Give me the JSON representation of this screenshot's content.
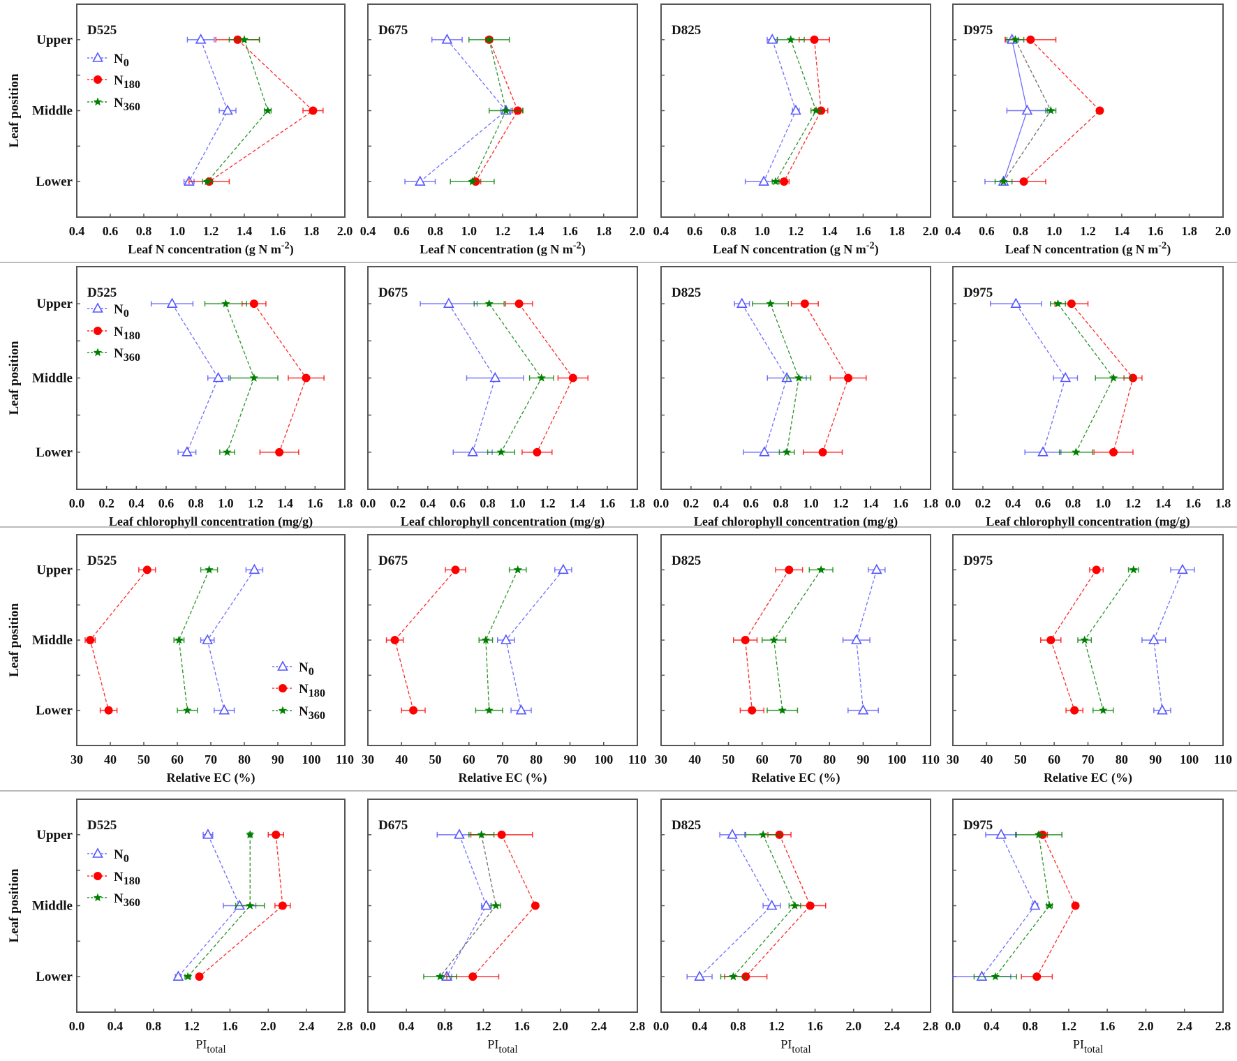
{
  "figure": {
    "ylabel": "Leaf position",
    "categories": [
      "Upper",
      "Middle",
      "Lower"
    ],
    "series_styles": {
      "N0": {
        "color": "#5555ff",
        "marker": "open-triangle"
      },
      "N180": {
        "color": "#ff0000",
        "marker": "filled-circle"
      },
      "N360": {
        "color": "#008000",
        "marker": "star"
      }
    },
    "row_separator_color": "#bbbbbb"
  },
  "chart_data": [
    {
      "type": "line",
      "title": "D525",
      "xlabel": "Leaf N concentration (g N m-2)",
      "xlim": [
        0.4,
        2.0
      ],
      "xticks": [
        "0.4",
        "0.6",
        "0.8",
        "1.0",
        "1.2",
        "1.4",
        "1.6",
        "1.8",
        "2.0"
      ],
      "categories": [
        "Upper",
        "Middle",
        "Lower"
      ],
      "legend": "top-left",
      "series": [
        {
          "name": "N0",
          "values": [
            1.14,
            1.3,
            1.07
          ],
          "errors": [
            0.08,
            0.05,
            0.03
          ]
        },
        {
          "name": "N180",
          "values": [
            1.36,
            1.81,
            1.19
          ],
          "errors": [
            0.13,
            0.06,
            0.12
          ]
        },
        {
          "name": "N360",
          "values": [
            1.4,
            1.54,
            1.18
          ],
          "errors": [
            0.09,
            0.02,
            0.03
          ]
        }
      ]
    },
    {
      "type": "line",
      "title": "D675",
      "xlabel": "Leaf N concentration (g N m-2)",
      "xlim": [
        0.4,
        2.0
      ],
      "xticks": [
        "0.4",
        "0.6",
        "0.8",
        "1.0",
        "1.2",
        "1.4",
        "1.6",
        "1.8",
        "2.0"
      ],
      "categories": [
        "Upper",
        "Middle",
        "Lower"
      ],
      "series": [
        {
          "name": "N0",
          "values": [
            0.87,
            1.22,
            0.71
          ],
          "errors": [
            0.09,
            0.03,
            0.09
          ]
        },
        {
          "name": "N180",
          "values": [
            1.12,
            1.29,
            1.04
          ],
          "errors": [
            0.02,
            0.03,
            0.03
          ]
        },
        {
          "name": "N360",
          "values": [
            1.12,
            1.22,
            1.02
          ],
          "errors": [
            0.12,
            0.1,
            0.13
          ]
        }
      ]
    },
    {
      "type": "line",
      "title": "D825",
      "xlabel": "Leaf N concentration (g N m-2)",
      "xlim": [
        0.4,
        2.0
      ],
      "xticks": [
        "0.4",
        "0.6",
        "0.8",
        "1.0",
        "1.2",
        "1.4",
        "1.6",
        "1.8",
        "2.0"
      ],
      "categories": [
        "Upper",
        "Middle",
        "Lower"
      ],
      "series": [
        {
          "name": "N0",
          "values": [
            1.06,
            1.2,
            1.01
          ],
          "errors": [
            0.03,
            0.02,
            0.11
          ]
        },
        {
          "name": "N180",
          "values": [
            1.31,
            1.35,
            1.13
          ],
          "errors": [
            0.09,
            0.04,
            0.03
          ]
        },
        {
          "name": "N360",
          "values": [
            1.17,
            1.32,
            1.08
          ],
          "errors": [
            0.08,
            0.03,
            0.02
          ]
        }
      ]
    },
    {
      "type": "line",
      "title": "D975",
      "xlabel": "Leaf N concentration (g N m-2)",
      "xlim": [
        0.4,
        2.0
      ],
      "xticks": [
        "0.4",
        "0.6",
        "0.8",
        "1.0",
        "1.2",
        "1.4",
        "1.6",
        "1.8",
        "2.0"
      ],
      "categories": [
        "Upper",
        "Middle",
        "Lower"
      ],
      "series": [
        {
          "name": "N0",
          "values": [
            0.75,
            0.84,
            0.7
          ],
          "errors": [
            0.04,
            0.12,
            0.11
          ],
          "line": "solid"
        },
        {
          "name": "N180",
          "values": [
            0.86,
            1.27,
            0.82
          ],
          "errors": [
            0.15,
            0.01,
            0.13
          ]
        },
        {
          "name": "N360",
          "values": [
            0.77,
            0.98,
            0.7
          ],
          "errors": [
            0.05,
            0.03,
            0.05
          ],
          "line_color": "#555555"
        }
      ]
    },
    {
      "type": "line",
      "title": "D525",
      "xlabel": "Leaf chlorophyll concentration (mg/g)",
      "xlim": [
        0.0,
        1.8
      ],
      "xticks": [
        "0.0",
        "0.2",
        "0.4",
        "0.6",
        "0.8",
        "1.0",
        "1.2",
        "1.4",
        "1.6",
        "1.8"
      ],
      "categories": [
        "Upper",
        "Middle",
        "Lower"
      ],
      "legend": "top-left",
      "series": [
        {
          "name": "N0",
          "values": [
            0.64,
            0.95,
            0.74
          ],
          "errors": [
            0.14,
            0.07,
            0.06
          ]
        },
        {
          "name": "N180",
          "values": [
            1.19,
            1.54,
            1.36
          ],
          "errors": [
            0.08,
            0.12,
            0.13
          ]
        },
        {
          "name": "N360",
          "values": [
            1.0,
            1.19,
            1.01
          ],
          "errors": [
            0.14,
            0.16,
            0.05
          ]
        }
      ]
    },
    {
      "type": "line",
      "title": "D675",
      "xlabel": "Leaf chlorophyll concentration (mg/g)",
      "xlim": [
        0.0,
        1.8
      ],
      "xticks": [
        "0.0",
        "0.2",
        "0.4",
        "0.6",
        "0.8",
        "1.0",
        "1.2",
        "1.4",
        "1.6",
        "1.8"
      ],
      "categories": [
        "Upper",
        "Middle",
        "Lower"
      ],
      "series": [
        {
          "name": "N0",
          "values": [
            0.54,
            0.85,
            0.7
          ],
          "errors": [
            0.19,
            0.19,
            0.13
          ]
        },
        {
          "name": "N180",
          "values": [
            1.01,
            1.37,
            1.13
          ],
          "errors": [
            0.09,
            0.1,
            0.1
          ]
        },
        {
          "name": "N360",
          "values": [
            0.81,
            1.16,
            0.89
          ],
          "errors": [
            0.1,
            0.08,
            0.09
          ]
        }
      ]
    },
    {
      "type": "line",
      "title": "D825",
      "xlabel": "Leaf chlorophyll concentration (mg/g)",
      "xlim": [
        0.0,
        1.8
      ],
      "xticks": [
        "0.0",
        "0.2",
        "0.4",
        "0.6",
        "0.8",
        "1.0",
        "1.2",
        "1.4",
        "1.6",
        "1.8"
      ],
      "categories": [
        "Upper",
        "Middle",
        "Lower"
      ],
      "series": [
        {
          "name": "N0",
          "values": [
            0.54,
            0.84,
            0.69
          ],
          "errors": [
            0.05,
            0.13,
            0.14
          ]
        },
        {
          "name": "N180",
          "values": [
            0.96,
            1.25,
            1.08
          ],
          "errors": [
            0.09,
            0.12,
            0.13
          ]
        },
        {
          "name": "N360",
          "values": [
            0.73,
            0.92,
            0.84
          ],
          "errors": [
            0.12,
            0.08,
            0.05
          ]
        }
      ]
    },
    {
      "type": "line",
      "title": "D975",
      "xlabel": "Leaf chlorophyll concentration (mg/g)",
      "xlim": [
        0.0,
        1.8
      ],
      "xticks": [
        "0.0",
        "0.2",
        "0.4",
        "0.6",
        "0.8",
        "1.0",
        "1.2",
        "1.4",
        "1.6",
        "1.8"
      ],
      "categories": [
        "Upper",
        "Middle",
        "Lower"
      ],
      "series": [
        {
          "name": "N0",
          "values": [
            0.42,
            0.75,
            0.6
          ],
          "errors": [
            0.17,
            0.08,
            0.12
          ]
        },
        {
          "name": "N180",
          "values": [
            0.79,
            1.2,
            1.07
          ],
          "errors": [
            0.11,
            0.06,
            0.13
          ]
        },
        {
          "name": "N360",
          "values": [
            0.7,
            1.07,
            0.82
          ],
          "errors": [
            0.05,
            0.12,
            0.11
          ]
        }
      ]
    },
    {
      "type": "line",
      "title": "D525",
      "xlabel": "Relative EC (%)",
      "xlim": [
        30,
        110
      ],
      "xticks": [
        "30",
        "40",
        "50",
        "60",
        "70",
        "80",
        "90",
        "100",
        "110"
      ],
      "categories": [
        "Upper",
        "Middle",
        "Lower"
      ],
      "legend": "bottom-right",
      "series": [
        {
          "name": "N0",
          "values": [
            83,
            69,
            74
          ],
          "errors": [
            2.5,
            2,
            3
          ]
        },
        {
          "name": "N180",
          "values": [
            51,
            34,
            39.5
          ],
          "errors": [
            2.5,
            1.5,
            2.5
          ]
        },
        {
          "name": "N360",
          "values": [
            69.5,
            60.5,
            63
          ],
          "errors": [
            2.5,
            1.5,
            3
          ]
        }
      ]
    },
    {
      "type": "line",
      "title": "D675",
      "xlabel": "Relative EC (%)",
      "xlim": [
        30,
        110
      ],
      "xticks": [
        "30",
        "40",
        "50",
        "60",
        "70",
        "80",
        "90",
        "100",
        "110"
      ],
      "categories": [
        "Upper",
        "Middle",
        "Lower"
      ],
      "series": [
        {
          "name": "N0",
          "values": [
            88,
            71,
            75.5
          ],
          "errors": [
            2.5,
            2.5,
            3
          ]
        },
        {
          "name": "N180",
          "values": [
            56,
            38,
            43.5
          ],
          "errors": [
            3,
            2.5,
            3.5
          ]
        },
        {
          "name": "N360",
          "values": [
            74.5,
            65,
            66
          ],
          "errors": [
            2.5,
            2,
            4
          ]
        }
      ]
    },
    {
      "type": "line",
      "title": "D825",
      "xlabel": "Relative EC (%)",
      "xlim": [
        30,
        110
      ],
      "xticks": [
        "30",
        "40",
        "50",
        "60",
        "70",
        "80",
        "90",
        "100",
        "110"
      ],
      "categories": [
        "Upper",
        "Middle",
        "Lower"
      ],
      "series": [
        {
          "name": "N0",
          "values": [
            94,
            88,
            90
          ],
          "errors": [
            2.5,
            4,
            4.5
          ]
        },
        {
          "name": "N180",
          "values": [
            68,
            55,
            57
          ],
          "errors": [
            4,
            3.5,
            3.5
          ]
        },
        {
          "name": "N360",
          "values": [
            77.5,
            63.5,
            66
          ],
          "errors": [
            3.5,
            3.5,
            4.5
          ]
        }
      ]
    },
    {
      "type": "line",
      "title": "D975",
      "xlabel": "Relative EC (%)",
      "xlim": [
        30,
        110
      ],
      "xticks": [
        "30",
        "40",
        "50",
        "60",
        "70",
        "80",
        "90",
        "100",
        "110"
      ],
      "categories": [
        "Upper",
        "Middle",
        "Lower"
      ],
      "series": [
        {
          "name": "N0",
          "values": [
            98,
            89.5,
            92
          ],
          "errors": [
            3.5,
            3.5,
            2.5
          ]
        },
        {
          "name": "N180",
          "values": [
            72.5,
            59,
            66
          ],
          "errors": [
            2,
            3,
            2.5
          ]
        },
        {
          "name": "N360",
          "values": [
            83.5,
            69,
            74.5
          ],
          "errors": [
            1.5,
            2,
            3
          ]
        }
      ]
    },
    {
      "type": "line",
      "title": "D525",
      "xlabel": "PItotal",
      "xlim": [
        0.0,
        2.8
      ],
      "xticks": [
        "0.0",
        "0.4",
        "0.8",
        "1.2",
        "1.6",
        "2.0",
        "2.4",
        "2.8"
      ],
      "categories": [
        "Upper",
        "Middle",
        "Lower"
      ],
      "legend": "top-left",
      "series": [
        {
          "name": "N0",
          "values": [
            1.37,
            1.7,
            1.06
          ],
          "errors": [
            0.05,
            0.17,
            0.03
          ]
        },
        {
          "name": "N180",
          "values": [
            2.08,
            2.15,
            1.28
          ],
          "errors": [
            0.08,
            0.08,
            0.03
          ]
        },
        {
          "name": "N360",
          "values": [
            1.81,
            1.81,
            1.16
          ],
          "errors": [
            0.02,
            0.15,
            0.03
          ]
        }
      ]
    },
    {
      "type": "line",
      "title": "D675",
      "xlabel": "PItotal",
      "xlim": [
        0.0,
        2.8
      ],
      "xticks": [
        "0.0",
        "0.4",
        "0.8",
        "1.2",
        "1.6",
        "2.0",
        "2.4",
        "2.8"
      ],
      "categories": [
        "Upper",
        "Middle",
        "Lower"
      ],
      "series": [
        {
          "name": "N0",
          "values": [
            0.95,
            1.23,
            0.82
          ],
          "errors": [
            0.23,
            0.05,
            0.05
          ]
        },
        {
          "name": "N180",
          "values": [
            1.39,
            1.74,
            1.09
          ],
          "errors": [
            0.32,
            0.02,
            0.27
          ]
        },
        {
          "name": "N360",
          "values": [
            1.18,
            1.33,
            0.75
          ],
          "errors": [
            0.13,
            0.05,
            0.17
          ],
          "line_color": "#555555"
        }
      ]
    },
    {
      "type": "line",
      "title": "D825",
      "xlabel": "PItotal",
      "xlim": [
        0.0,
        2.8
      ],
      "xticks": [
        "0.0",
        "0.4",
        "0.8",
        "1.2",
        "1.6",
        "2.0",
        "2.4",
        "2.8"
      ],
      "categories": [
        "Upper",
        "Middle",
        "Lower"
      ],
      "series": [
        {
          "name": "N0",
          "values": [
            0.74,
            1.15,
            0.4
          ],
          "errors": [
            0.13,
            0.09,
            0.13
          ]
        },
        {
          "name": "N180",
          "values": [
            1.23,
            1.55,
            0.88
          ],
          "errors": [
            0.12,
            0.16,
            0.22
          ]
        },
        {
          "name": "N360",
          "values": [
            1.06,
            1.39,
            0.75
          ],
          "errors": [
            0.18,
            0.06,
            0.13
          ]
        }
      ]
    },
    {
      "type": "line",
      "title": "D975",
      "xlabel": "PItotal",
      "xlim": [
        0.0,
        2.8
      ],
      "xticks": [
        "0.0",
        "0.4",
        "0.8",
        "1.2",
        "1.6",
        "2.0",
        "2.4",
        "2.8"
      ],
      "categories": [
        "Upper",
        "Middle",
        "Lower"
      ],
      "series": [
        {
          "name": "N0",
          "values": [
            0.5,
            0.85,
            0.3
          ],
          "errors": [
            0.16,
            0.03,
            0.3
          ]
        },
        {
          "name": "N180",
          "values": [
            0.93,
            1.27,
            0.87
          ],
          "errors": [
            0.05,
            0.02,
            0.16
          ]
        },
        {
          "name": "N360",
          "values": [
            0.89,
            1.0,
            0.44
          ],
          "errors": [
            0.24,
            0.03,
            0.22
          ]
        }
      ]
    }
  ]
}
